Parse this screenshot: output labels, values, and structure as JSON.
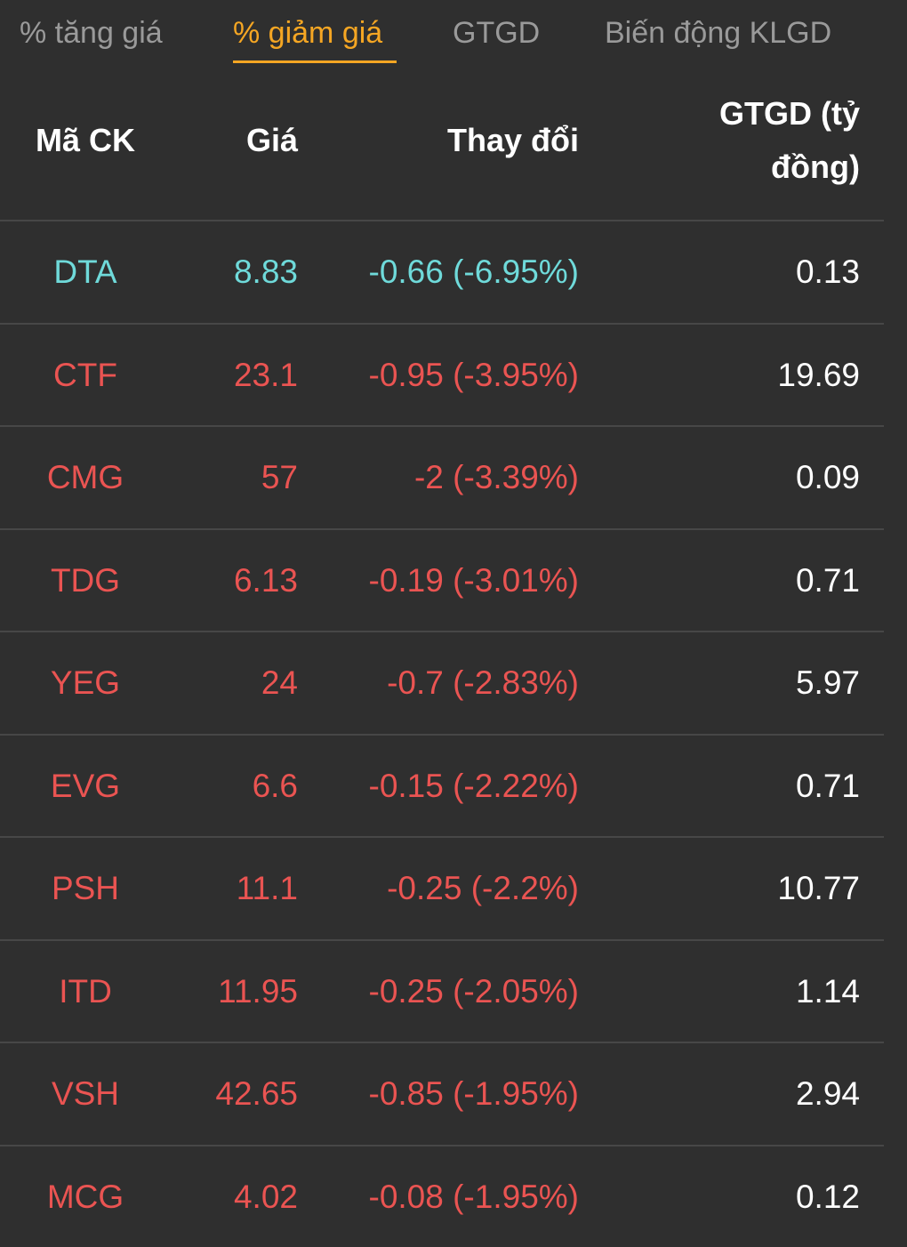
{
  "tabs": [
    {
      "label": "% tăng giá",
      "active": false
    },
    {
      "label": "% giảm giá",
      "active": true
    },
    {
      "label": "GTGD",
      "active": false
    },
    {
      "label": "Biến động KLGD",
      "active": false
    }
  ],
  "colors": {
    "background": "#2f2f2f",
    "active_tab": "#f5a623",
    "inactive_tab": "#9a9a9a",
    "floor_price": "#6fdada",
    "decrease": "#ea5452",
    "divider": "#474747"
  },
  "table": {
    "headers": {
      "symbol": "Mã CK",
      "price": "Giá",
      "change": "Thay đổi",
      "value": "GTGD (tỷ đồng)"
    },
    "rows": [
      {
        "symbol": "DTA",
        "price": "8.83",
        "change": "-0.66 (-6.95%)",
        "value": "0.13",
        "tone": "cyan"
      },
      {
        "symbol": "CTF",
        "price": "23.1",
        "change": "-0.95 (-3.95%)",
        "value": "19.69",
        "tone": "red"
      },
      {
        "symbol": "CMG",
        "price": "57",
        "change": "-2 (-3.39%)",
        "value": "0.09",
        "tone": "red"
      },
      {
        "symbol": "TDG",
        "price": "6.13",
        "change": "-0.19 (-3.01%)",
        "value": "0.71",
        "tone": "red"
      },
      {
        "symbol": "YEG",
        "price": "24",
        "change": "-0.7 (-2.83%)",
        "value": "5.97",
        "tone": "red"
      },
      {
        "symbol": "EVG",
        "price": "6.6",
        "change": "-0.15 (-2.22%)",
        "value": "0.71",
        "tone": "red"
      },
      {
        "symbol": "PSH",
        "price": "11.1",
        "change": "-0.25 (-2.2%)",
        "value": "10.77",
        "tone": "red"
      },
      {
        "symbol": "ITD",
        "price": "11.95",
        "change": "-0.25 (-2.05%)",
        "value": "1.14",
        "tone": "red"
      },
      {
        "symbol": "VSH",
        "price": "42.65",
        "change": "-0.85 (-1.95%)",
        "value": "2.94",
        "tone": "red"
      },
      {
        "symbol": "MCG",
        "price": "4.02",
        "change": "-0.08 (-1.95%)",
        "value": "0.12",
        "tone": "red"
      }
    ]
  }
}
